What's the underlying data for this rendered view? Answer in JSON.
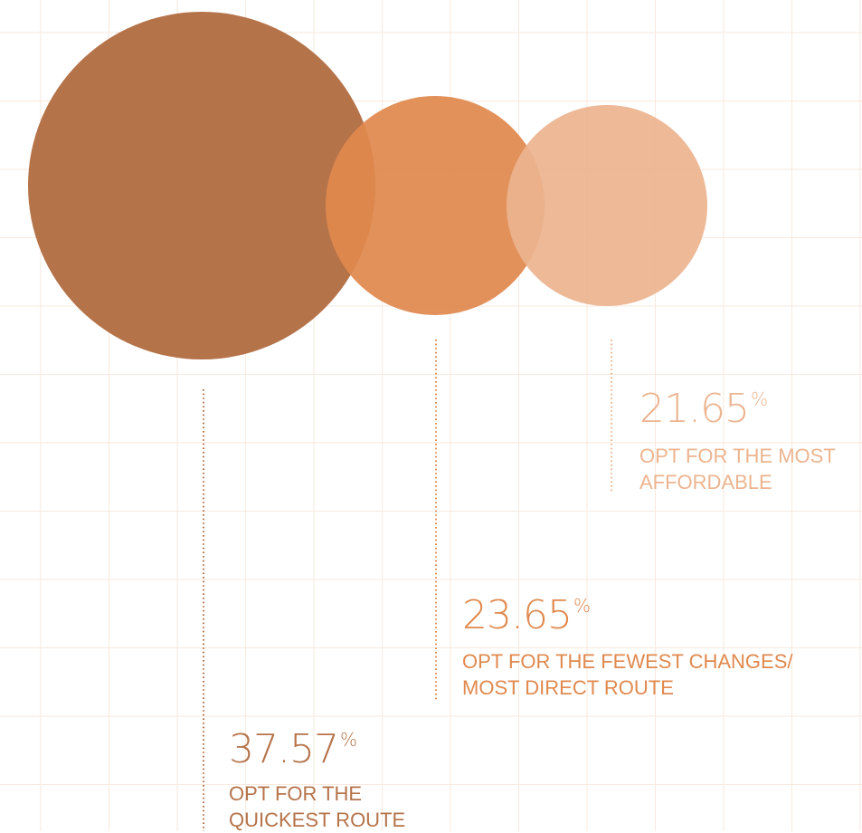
{
  "chart_data": {
    "type": "bubble",
    "unit": "%",
    "series": [
      {
        "value": 37.57,
        "value_text": "37.57",
        "label_lines": [
          "OPT FOR THE",
          "QUICKEST ROUTE"
        ],
        "color": "#b5734a"
      },
      {
        "value": 23.65,
        "value_text": "23.65",
        "label_lines": [
          "OPT FOR THE FEWEST CHANGES/",
          "MOST DIRECT ROUTE"
        ],
        "color": "#e0894e"
      },
      {
        "value": 21.65,
        "value_text": "21.65",
        "label_lines": [
          "OPT FOR THE MOST",
          "AFFORDABLE"
        ],
        "color": "#ecb48f"
      }
    ],
    "grid": true,
    "legend": "none"
  },
  "colors": {
    "grid": "#f7e9de",
    "leader": "#b5734a"
  }
}
